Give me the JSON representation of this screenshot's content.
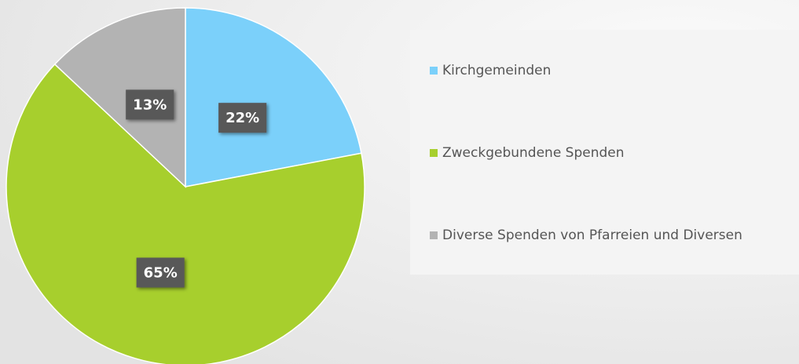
{
  "chart_data": {
    "type": "pie",
    "categories": [
      "Kirchgemeinden",
      "Zweckgebundene Spenden",
      "Diverse Spenden von Pfarreien und Diversen"
    ],
    "values": [
      22,
      65,
      13
    ],
    "value_labels": [
      "22%",
      "65%",
      "13%"
    ],
    "colors": [
      "#7bd0fa",
      "#a7cf2d",
      "#b3b3b3"
    ],
    "legend": "right"
  }
}
